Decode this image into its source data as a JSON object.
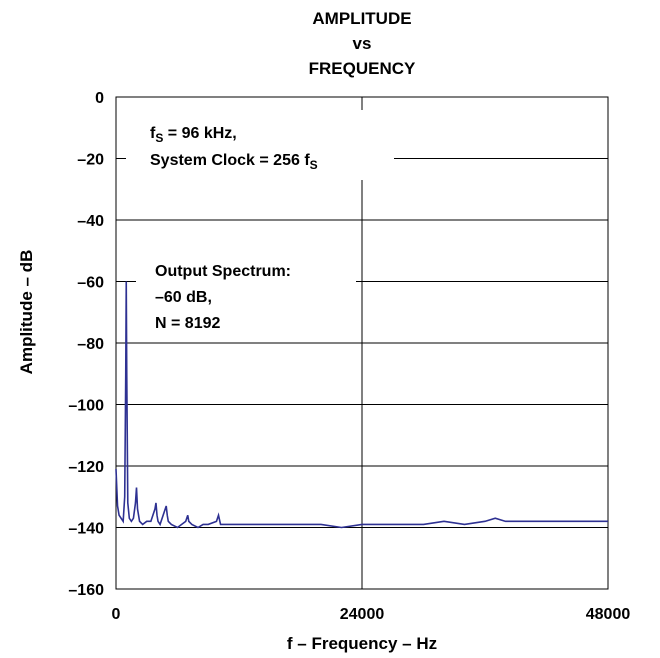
{
  "chart_data": {
    "type": "line",
    "title_lines": [
      "AMPLITUDE",
      "vs",
      "FREQUENCY"
    ],
    "xlabel": "f – Frequency – Hz",
    "ylabel": "Amplitude – dB",
    "xlim": [
      0,
      48000
    ],
    "ylim": [
      -160,
      0
    ],
    "xticks": [
      0,
      24000,
      48000
    ],
    "xtick_labels": [
      "0",
      "24000",
      "48000"
    ],
    "yticks": [
      0,
      -20,
      -40,
      -60,
      -80,
      -100,
      -120,
      -140,
      -160
    ],
    "ytick_labels": [
      "0",
      "–20",
      "–40",
      "–60",
      "–80",
      "–100",
      "–120",
      "–140",
      "–160"
    ],
    "grid": true,
    "line_color": "#2e3192",
    "annotations": {
      "conditions": {
        "line1_main": "f",
        "line1_sub": "S",
        "line1_rest": " = 96 kHz,",
        "line2_main": "System Clock = 256 f",
        "line2_sub": "S"
      },
      "spectrum": {
        "line1": "Output Spectrum:",
        "line2": "–60 dB,",
        "line3": "N = 8192"
      }
    },
    "series": [
      {
        "x": [
          0,
          150,
          300,
          500,
          700,
          850,
          950,
          1000,
          1050,
          1150,
          1300,
          1500,
          1700,
          1900,
          2000,
          2100,
          2300,
          2600,
          3000,
          3400,
          3800,
          3900,
          4000,
          4100,
          4300,
          4700,
          4900,
          5000,
          5100,
          5400,
          6000,
          6800,
          7000,
          7100,
          7400,
          8000,
          8500,
          9000,
          9800,
          10000,
          10200,
          10800,
          12000,
          14000,
          16000,
          18000,
          20000,
          22000,
          24000,
          26000,
          28000,
          30000,
          32000,
          34000,
          36000,
          37000,
          38000,
          39000,
          40000,
          42000,
          44000,
          46000,
          48000
        ],
        "y": [
          -121,
          -133,
          -136,
          -137,
          -138,
          -130,
          -90,
          -60,
          -90,
          -132,
          -137,
          -138,
          -137,
          -132,
          -127,
          -134,
          -138,
          -139,
          -138,
          -138,
          -134,
          -132,
          -136,
          -138,
          -139,
          -135,
          -133,
          -136,
          -138,
          -139,
          -140,
          -138,
          -136,
          -138,
          -139,
          -140,
          -139,
          -139,
          -138,
          -136,
          -139,
          -139,
          -139,
          -139,
          -139,
          -139,
          -139,
          -140,
          -139,
          -139,
          -139,
          -139,
          -138,
          -139,
          -138,
          -137,
          -138,
          -138,
          -138,
          -138,
          -138,
          -138,
          -138
        ]
      }
    ]
  }
}
